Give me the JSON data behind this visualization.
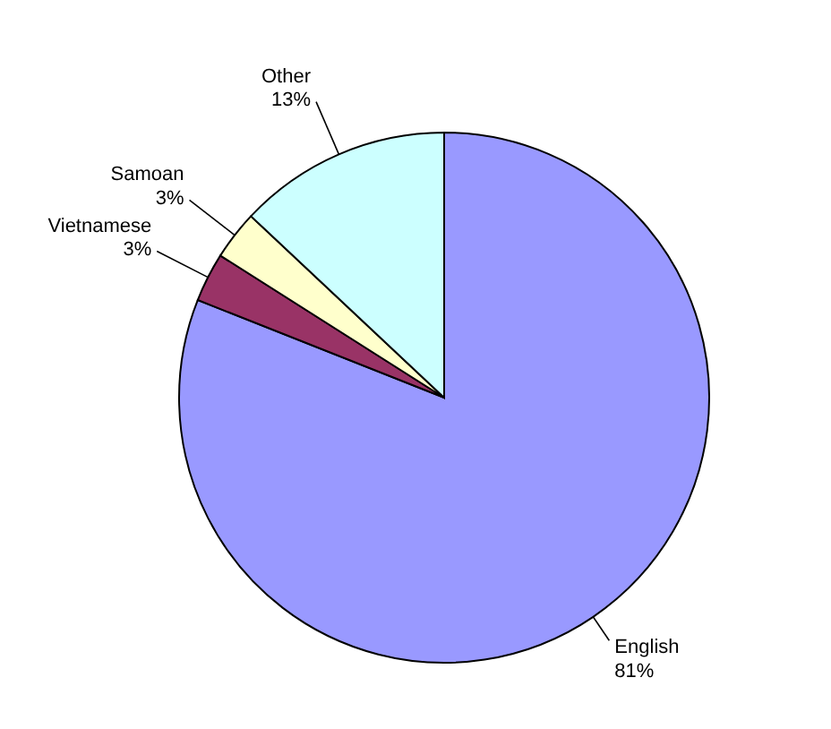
{
  "chart_data": {
    "type": "pie",
    "categories": [
      "English",
      "Vietnamese",
      "Samoan",
      "Other"
    ],
    "values": [
      81,
      3,
      3,
      13
    ],
    "colors": [
      "#9999ff",
      "#993366",
      "#ffffcc",
      "#ccffff"
    ],
    "value_labels": [
      "81%",
      "3%",
      "3%",
      "13%"
    ]
  }
}
